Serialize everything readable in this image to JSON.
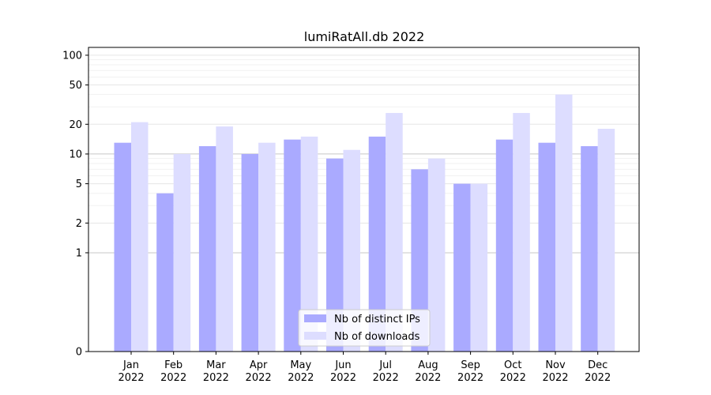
{
  "chart_data": {
    "type": "bar",
    "title": "lumiRatAll.db 2022",
    "xlabel": "",
    "ylabel": "",
    "categories": [
      "Jan\n2022",
      "Feb\n2022",
      "Mar\n2022",
      "Apr\n2022",
      "May\n2022",
      "Jun\n2022",
      "Jul\n2022",
      "Aug\n2022",
      "Sep\n2022",
      "Oct\n2022",
      "Nov\n2022",
      "Dec\n2022"
    ],
    "yscale": "symlog",
    "ylim": [
      0,
      120
    ],
    "yticks": [
      0,
      1,
      2,
      5,
      10,
      20,
      50,
      100
    ],
    "ytick_labels": [
      "0",
      "1",
      "2",
      "5",
      "10",
      "20",
      "50",
      "100"
    ],
    "grid": true,
    "legend_position": "bottom-center",
    "series": [
      {
        "name": "Nb of distinct IPs",
        "color": "#aaaaff",
        "values": [
          13,
          4,
          12,
          10,
          14,
          9,
          15,
          7,
          5,
          14,
          13,
          12
        ]
      },
      {
        "name": "Nb of downloads",
        "color": "#ddddff",
        "values": [
          21,
          10,
          19,
          13,
          15,
          11,
          26,
          9,
          5,
          26,
          40,
          18
        ]
      }
    ]
  }
}
